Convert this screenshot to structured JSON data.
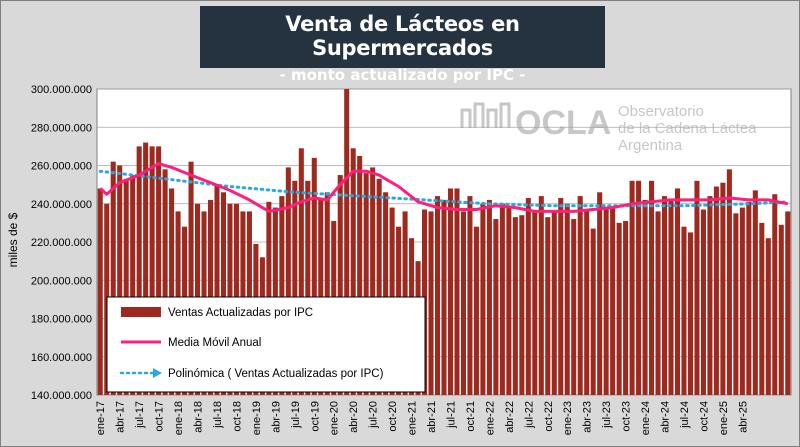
{
  "header": {
    "title": "Venta de Lácteos en Supermercados",
    "subtitle": "- monto actualizado por IPC -"
  },
  "logo": {
    "name": "OCLA",
    "line1": "Observatorio",
    "line2": "de la Cadena Láctea",
    "line3": "Argentina"
  },
  "colors": {
    "bars": "#9e2a1f",
    "moving_average": "#ff1f7a",
    "trend": "#29a9e0",
    "title_bg": "#25323f"
  },
  "chart_data": {
    "type": "bar",
    "ylabel": "miles de $",
    "ylim": [
      140000000,
      300000000
    ],
    "ytick_labels": [
      "140.000.000",
      "160.000.000",
      "180.000.000",
      "200.000.000",
      "220.000.000",
      "240.000.000",
      "260.000.000",
      "280.000.000",
      "300.000.000"
    ],
    "grid": true,
    "legend_position": "bottom-left",
    "xtick_labels": [
      "ene-17",
      "abr-17",
      "jul-17",
      "oct-17",
      "ene-18",
      "abr-18",
      "jul-18",
      "oct-18",
      "ene-19",
      "abr-19",
      "jul-19",
      "oct-19",
      "ene-20",
      "abr-20",
      "jul-20",
      "oct-20",
      "ene-21",
      "abr-21",
      "jul-21",
      "oct-21",
      "ene-22",
      "abr-22",
      "jul-22",
      "oct-22",
      "ene-23",
      "abr-23",
      "jul-23",
      "oct-23",
      "ene-24",
      "abr-24",
      "jul-24",
      "oct-24",
      "ene-25",
      "abr-25"
    ],
    "series": [
      {
        "name": "Ventas Actualizadas por IPC",
        "type": "bar",
        "values": [
          248000000,
          240000000,
          262000000,
          260000000,
          253000000,
          255000000,
          270000000,
          272000000,
          270000000,
          270000000,
          258000000,
          248000000,
          236000000,
          228000000,
          262000000,
          240000000,
          236000000,
          242000000,
          250000000,
          246000000,
          240000000,
          240000000,
          236000000,
          236000000,
          219000000,
          212000000,
          241000000,
          238000000,
          244000000,
          259000000,
          252000000,
          269000000,
          252000000,
          264000000,
          243000000,
          246000000,
          231000000,
          255000000,
          301000000,
          269000000,
          265000000,
          256000000,
          259000000,
          253000000,
          246000000,
          238000000,
          228000000,
          236000000,
          222000000,
          210000000,
          237000000,
          236000000,
          244000000,
          242000000,
          248000000,
          248000000,
          236000000,
          244000000,
          228000000,
          240000000,
          242000000,
          232000000,
          240000000,
          238000000,
          233000000,
          234000000,
          243000000,
          236000000,
          244000000,
          233000000,
          236000000,
          243000000,
          240000000,
          232000000,
          244000000,
          237000000,
          227000000,
          246000000,
          238000000,
          238000000,
          230000000,
          231000000,
          252000000,
          252000000,
          242000000,
          252000000,
          236000000,
          244000000,
          242000000,
          248000000,
          228000000,
          225000000,
          252000000,
          237000000,
          244000000,
          249000000,
          251000000,
          258000000,
          235000000,
          238000000,
          241000000,
          247000000,
          230000000,
          222000000,
          245000000,
          229000000,
          236000000
        ]
      },
      {
        "name": "Media Móvil Anual",
        "type": "line",
        "x_index": [
          0,
          1,
          3,
          6,
          9,
          11,
          14,
          17,
          20,
          23,
          26,
          29,
          31,
          33,
          35,
          37,
          39,
          41,
          43,
          46,
          49,
          52,
          55,
          58,
          61,
          64,
          67,
          70,
          73,
          76,
          79,
          82,
          85,
          88,
          91,
          94,
          97,
          100,
          103,
          106
        ],
        "values": [
          248000000,
          245000000,
          251000000,
          255000000,
          261000000,
          259000000,
          255000000,
          251000000,
          247000000,
          242000000,
          236000000,
          238000000,
          241000000,
          243000000,
          242000000,
          250000000,
          257000000,
          257000000,
          255000000,
          249000000,
          241000000,
          238000000,
          237000000,
          237000000,
          239000000,
          238000000,
          236000000,
          236000000,
          236000000,
          237000000,
          238000000,
          240000000,
          241000000,
          242000000,
          242000000,
          242000000,
          243000000,
          242000000,
          242000000,
          240000000
        ]
      },
      {
        "name": "Polinómica ( Ventas Actualizadas por IPC)",
        "type": "trend",
        "x_index": [
          0,
          10,
          20,
          30,
          40,
          50,
          60,
          70,
          80,
          90,
          100,
          106
        ],
        "values": [
          257000000,
          253000000,
          249000000,
          246000000,
          244000000,
          242000000,
          240000000,
          239000000,
          239000000,
          239000000,
          240000000,
          241000000
        ]
      }
    ]
  }
}
